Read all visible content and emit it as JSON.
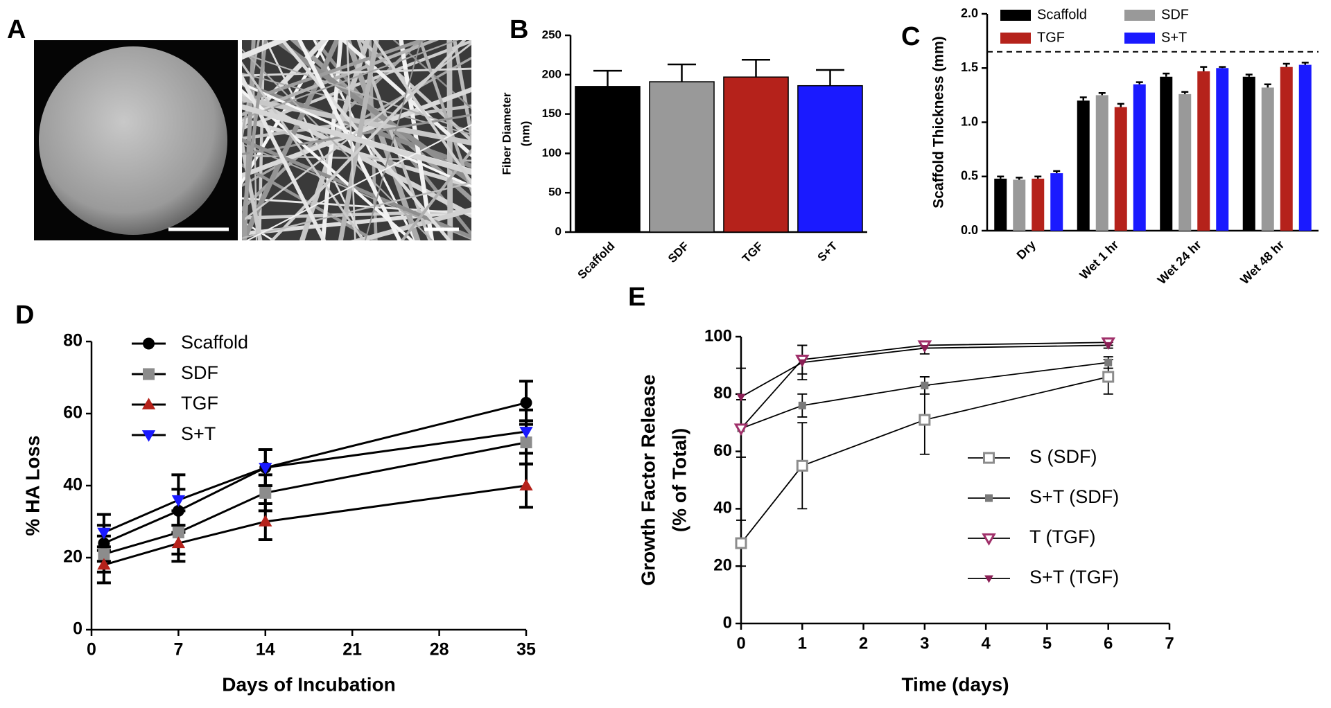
{
  "image_panel": {
    "label": "A"
  },
  "chart_data": [
    {
      "type": "bar",
      "label": "B",
      "ylabel": [
        "Fiber Diameter",
        "(nm)"
      ],
      "categories": [
        "Scaffold",
        "SDF",
        "TGF",
        "S+T"
      ],
      "values": [
        185,
        191,
        197,
        186
      ],
      "errors": [
        20,
        22,
        22,
        20
      ],
      "colors": [
        "#000000",
        "#999999",
        "#b5221b",
        "#1a1aff"
      ],
      "ylim": [
        0,
        250
      ],
      "yticks": [
        0,
        50,
        100,
        150,
        200,
        250
      ]
    },
    {
      "type": "grouped-bar",
      "label": "C",
      "ylabel": "Scaffold Thickness (mm)",
      "categories": [
        "Dry",
        "Wet 1 hr",
        "Wet 24 hr",
        "Wet 48 hr"
      ],
      "series": [
        {
          "name": "Scaffold",
          "color": "#000000",
          "values": [
            0.48,
            1.2,
            1.42,
            1.42
          ],
          "errors": [
            0.02,
            0.03,
            0.03,
            0.02
          ]
        },
        {
          "name": "SDF",
          "color": "#999999",
          "values": [
            0.47,
            1.25,
            1.26,
            1.32
          ],
          "errors": [
            0.02,
            0.02,
            0.02,
            0.03
          ]
        },
        {
          "name": "TGF",
          "color": "#b5221b",
          "values": [
            0.48,
            1.14,
            1.47,
            1.51
          ],
          "errors": [
            0.02,
            0.03,
            0.04,
            0.03
          ]
        },
        {
          "name": "S+T",
          "color": "#1a1aff",
          "values": [
            0.53,
            1.35,
            1.5,
            1.53
          ],
          "errors": [
            0.02,
            0.02,
            0.01,
            0.02
          ]
        }
      ],
      "hline": 1.65,
      "legend": "top-left",
      "ylim": [
        0,
        2.0
      ],
      "yticks": [
        {
          "value": 0,
          "label": "0.0"
        },
        0.5,
        {
          "value": 1,
          "label": "1.0"
        },
        1.5,
        {
          "value": 2,
          "label": "2.0"
        }
      ]
    },
    {
      "type": "line",
      "label": "D",
      "ylabel": "% HA Loss",
      "xlabel": "Days of Incubation",
      "x": [
        1,
        7,
        14,
        35
      ],
      "series": [
        {
          "name": "Scaffold",
          "color": "#000000",
          "marker": "circle",
          "filled": true,
          "values": [
            24,
            33,
            45,
            63
          ],
          "errors": [
            5,
            6,
            5,
            6
          ]
        },
        {
          "name": "SDF",
          "color": "#8c8c8c",
          "marker": "square",
          "filled": true,
          "values": [
            21,
            27,
            38,
            52
          ],
          "errors": [
            5,
            6,
            5,
            6
          ]
        },
        {
          "name": "TGF",
          "color": "#b5221b",
          "marker": "triangle-up",
          "filled": true,
          "values": [
            18,
            24,
            30,
            40
          ],
          "errors": [
            5,
            5,
            5,
            6
          ]
        },
        {
          "name": "S+T",
          "color": "#1a1aff",
          "marker": "triangle-down",
          "filled": true,
          "values": [
            27,
            36,
            45,
            55
          ],
          "errors": [
            5,
            7,
            5,
            6
          ]
        }
      ],
      "legend": "top-left",
      "xlim": [
        0,
        35
      ],
      "xticks": [
        0,
        7,
        14,
        21,
        28,
        35
      ],
      "ylim": [
        0,
        80
      ],
      "yticks": [
        0,
        20,
        40,
        60,
        80
      ]
    },
    {
      "type": "line",
      "label": "E",
      "ylabel": [
        "Growth Factor Release",
        "(% of Total)"
      ],
      "xlabel": "Time (days)",
      "x": [
        0,
        1,
        3,
        6
      ],
      "series": [
        {
          "name": "S (SDF)",
          "color": "#8c8c8c",
          "marker": "square",
          "filled": false,
          "values": [
            28,
            55,
            71,
            86
          ],
          "errors": [
            8,
            15,
            12,
            6
          ]
        },
        {
          "name": "S+T (SDF)",
          "color": "#7a7a7a",
          "marker": "square",
          "filled": true,
          "values": [
            68,
            76,
            83,
            91
          ],
          "errors": [
            10,
            4,
            3,
            2
          ]
        },
        {
          "name": "T (TGF)",
          "color": "#a0306a",
          "marker": "triangle-down",
          "filled": false,
          "values": [
            68,
            92,
            97,
            98
          ],
          "errors": [
            10,
            5,
            1,
            1
          ]
        },
        {
          "name": "S+T (TGF)",
          "color": "#8a1f55",
          "marker": "triangle-down",
          "filled": true,
          "values": [
            79,
            91,
            96,
            97
          ],
          "errors": [
            10,
            6,
            2,
            1
          ]
        }
      ],
      "legend": "lower-right",
      "xlim": [
        0,
        7
      ],
      "xticks": [
        0,
        1,
        2,
        3,
        4,
        5,
        6,
        7
      ],
      "ylim": [
        0,
        100
      ],
      "yticks": [
        0,
        20,
        40,
        60,
        80,
        100
      ]
    }
  ]
}
